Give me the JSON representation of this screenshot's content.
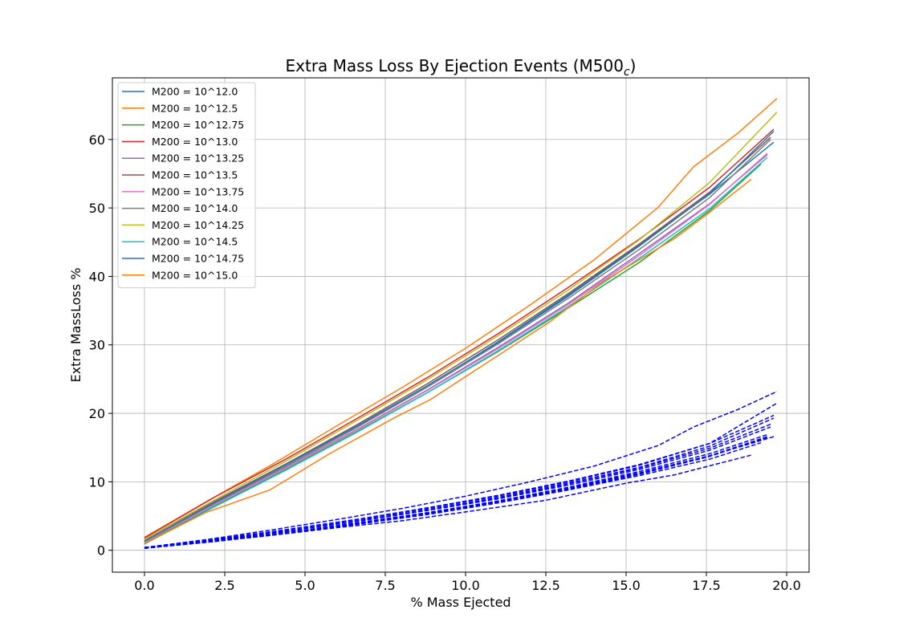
{
  "chart_data": {
    "type": "line",
    "title": "Extra Mass Loss By Ejection Events (M500",
    "title_subscript": "c",
    "title_suffix": ")",
    "xlabel": "% Mass Ejected",
    "ylabel": "Extra MassLoss %",
    "xlim": [
      -1.0,
      20.7
    ],
    "ylim": [
      -3.2,
      69.0
    ],
    "xticks": [
      0.0,
      2.5,
      5.0,
      7.5,
      10.0,
      12.5,
      15.0,
      17.5,
      20.0
    ],
    "xtick_labels": [
      "0.0",
      "2.5",
      "5.0",
      "7.5",
      "10.0",
      "12.5",
      "15.0",
      "17.5",
      "20.0"
    ],
    "yticks": [
      0,
      10,
      20,
      30,
      40,
      50,
      60
    ],
    "ytick_labels": [
      "0",
      "10",
      "20",
      "30",
      "40",
      "50",
      "60"
    ],
    "grid": true,
    "legend_position": "top-left",
    "series": [
      {
        "name": "M200 = 10^12.0",
        "color": "#1f77b4",
        "style": "solid",
        "x": [
          0,
          2.2,
          4.4,
          6.6,
          8.8,
          11.0,
          13.2,
          15.4,
          17.6,
          19.6
        ],
        "y": [
          1.2,
          6.9,
          12.3,
          17.9,
          23.9,
          30.4,
          37.3,
          44.6,
          52.0,
          59.6
        ]
      },
      {
        "name": "M200 = 10^12.5",
        "color": "#ff7f0e",
        "style": "solid",
        "x": [
          0,
          2.0,
          4.0,
          6.0,
          8.0,
          10.0,
          12.0,
          14.0,
          16.0,
          17.1,
          18.5,
          19.7
        ],
        "y": [
          1.9,
          7.3,
          12.6,
          18.2,
          23.7,
          29.5,
          35.8,
          42.4,
          50.1,
          56.0,
          61.0,
          66.0
        ]
      },
      {
        "name": "M200 = 10^12.75",
        "color": "#2ca02c",
        "style": "solid",
        "x": [
          0,
          2.2,
          4.4,
          6.6,
          8.8,
          11.0,
          13.2,
          15.4,
          17.6,
          19.2
        ],
        "y": [
          1.0,
          6.5,
          11.8,
          17.3,
          23.0,
          29.0,
          35.4,
          42.0,
          49.6,
          56.4
        ]
      },
      {
        "name": "M200 = 10^13.0",
        "color": "#d62728",
        "style": "solid",
        "x": [
          0,
          2.2,
          4.4,
          6.6,
          8.8,
          11.0,
          13.2,
          15.4,
          17.6,
          19.6
        ],
        "y": [
          1.8,
          7.8,
          13.3,
          19.2,
          25.2,
          31.6,
          38.4,
          45.4,
          53.0,
          61.5
        ]
      },
      {
        "name": "M200 = 10^13.25",
        "color": "#9467bd",
        "style": "solid",
        "x": [
          0,
          2.2,
          4.4,
          6.6,
          8.8,
          11.0,
          13.2,
          15.4,
          17.6,
          19.4
        ],
        "y": [
          1.3,
          6.8,
          12.1,
          17.6,
          23.4,
          29.6,
          36.1,
          43.3,
          50.6,
          57.8
        ]
      },
      {
        "name": "M200 = 10^13.5",
        "color": "#8c564b",
        "style": "solid",
        "x": [
          0,
          2.2,
          4.4,
          6.6,
          8.8,
          11.0,
          13.2,
          15.4,
          17.6,
          19.5
        ],
        "y": [
          1.6,
          7.2,
          12.6,
          18.3,
          24.3,
          30.7,
          37.5,
          44.7,
          52.3,
          60.3
        ]
      },
      {
        "name": "M200 = 10^13.75",
        "color": "#e377c2",
        "style": "solid",
        "x": [
          0,
          2.2,
          4.4,
          6.6,
          8.8,
          11.0,
          13.2,
          15.4,
          17.6,
          19.4
        ],
        "y": [
          1.2,
          6.7,
          12.0,
          17.5,
          23.3,
          29.4,
          35.9,
          43.0,
          50.5,
          58.0
        ]
      },
      {
        "name": "M200 = 10^14.0",
        "color": "#7f7f7f",
        "style": "solid",
        "x": [
          0,
          2.2,
          4.4,
          6.6,
          8.8,
          11.0,
          13.2,
          15.4,
          17.6,
          19.5
        ],
        "y": [
          1.4,
          7.0,
          12.3,
          17.9,
          23.8,
          30.1,
          36.8,
          43.9,
          51.5,
          60.0
        ]
      },
      {
        "name": "M200 = 10^14.25",
        "color": "#bcbd22",
        "style": "solid",
        "x": [
          0,
          2.2,
          4.4,
          6.6,
          8.8,
          11.0,
          13.2,
          15.4,
          17.6,
          19.7
        ],
        "y": [
          1.6,
          7.4,
          13.0,
          18.9,
          24.9,
          31.3,
          38.0,
          45.3,
          53.7,
          64.0
        ]
      },
      {
        "name": "M200 = 10^14.5",
        "color": "#17becf",
        "style": "solid",
        "x": [
          0,
          2.2,
          4.4,
          6.6,
          8.8,
          11.0,
          13.2,
          15.4,
          17.6,
          19.4
        ],
        "y": [
          0.9,
          6.4,
          11.7,
          17.2,
          23.0,
          29.1,
          35.6,
          42.6,
          49.9,
          57.4
        ]
      },
      {
        "name": "M200 = 10^14.75",
        "color": "#1f77b4",
        "style": "solid",
        "x": [
          0,
          2.2,
          4.4,
          6.6,
          8.8,
          11.0,
          13.2,
          15.4,
          17.6,
          19.6
        ],
        "y": [
          1.3,
          7.0,
          12.5,
          18.1,
          24.0,
          30.3,
          37.1,
          44.4,
          52.1,
          61.2
        ]
      },
      {
        "name": "M200 = 10^15.0",
        "color": "#ff7f0e",
        "style": "solid",
        "x": [
          0,
          1.9,
          3.9,
          5.8,
          7.8,
          8.9,
          10.8,
          12.6,
          14.3,
          16.5,
          17.5,
          18.9
        ],
        "y": [
          1.0,
          5.5,
          8.8,
          14.2,
          19.4,
          22.0,
          27.8,
          33.3,
          39.3,
          45.5,
          49.0,
          54.2
        ]
      },
      {
        "color": "#0000ff",
        "style": "dashed",
        "x": [
          0,
          2.2,
          4.4,
          6.6,
          8.8,
          11.0,
          13.2,
          15.4,
          17.6,
          19.6
        ],
        "y": [
          0.3,
          1.4,
          2.6,
          3.9,
          5.4,
          7.1,
          9.1,
          11.3,
          13.8,
          16.6
        ]
      },
      {
        "color": "#0000ff",
        "style": "dashed",
        "x": [
          0,
          2.0,
          4.0,
          6.0,
          8.0,
          10.0,
          12.0,
          14.0,
          16.0,
          17.1,
          18.5,
          19.7
        ],
        "y": [
          0.4,
          1.6,
          3.0,
          4.5,
          6.1,
          7.9,
          10.0,
          12.3,
          15.3,
          18.0,
          20.6,
          23.2
        ]
      },
      {
        "color": "#0000ff",
        "style": "dashed",
        "x": [
          0,
          2.2,
          4.4,
          6.6,
          8.8,
          11.0,
          13.2,
          15.4,
          17.6,
          19.2
        ],
        "y": [
          0.3,
          1.3,
          2.5,
          3.8,
          5.2,
          6.9,
          8.8,
          10.9,
          13.3,
          15.7
        ]
      },
      {
        "color": "#0000ff",
        "style": "dashed",
        "x": [
          0,
          2.2,
          4.4,
          6.6,
          8.8,
          11.0,
          13.2,
          15.4,
          17.6,
          19.6
        ],
        "y": [
          0.4,
          1.6,
          3.0,
          4.5,
          6.2,
          8.0,
          10.1,
          12.5,
          15.6,
          19.7
        ]
      },
      {
        "color": "#0000ff",
        "style": "dashed",
        "x": [
          0,
          2.2,
          4.4,
          6.6,
          8.8,
          11.0,
          13.2,
          15.4,
          17.6,
          19.4
        ],
        "y": [
          0.3,
          1.4,
          2.6,
          4.0,
          5.5,
          7.2,
          9.2,
          11.5,
          14.1,
          16.9
        ]
      },
      {
        "color": "#0000ff",
        "style": "dashed",
        "x": [
          0,
          2.2,
          4.4,
          6.6,
          8.8,
          11.0,
          13.2,
          15.4,
          17.6,
          19.5
        ],
        "y": [
          0.4,
          1.5,
          2.8,
          4.3,
          5.9,
          7.6,
          9.7,
          12.0,
          14.9,
          18.4
        ]
      },
      {
        "color": "#0000ff",
        "style": "dashed",
        "x": [
          0,
          2.2,
          4.4,
          6.6,
          8.8,
          11.0,
          13.2,
          15.4,
          17.6,
          19.4
        ],
        "y": [
          0.3,
          1.3,
          2.6,
          3.9,
          5.4,
          7.1,
          9.0,
          11.2,
          13.8,
          16.6
        ]
      },
      {
        "color": "#0000ff",
        "style": "dashed",
        "x": [
          0,
          2.2,
          4.4,
          6.6,
          8.8,
          11.0,
          13.2,
          15.4,
          17.6,
          19.5
        ],
        "y": [
          0.3,
          1.5,
          2.8,
          4.2,
          5.8,
          7.5,
          9.5,
          11.8,
          14.6,
          18.0
        ]
      },
      {
        "color": "#0000ff",
        "style": "dashed",
        "x": [
          0,
          2.2,
          4.4,
          6.6,
          8.8,
          11.0,
          13.2,
          15.4,
          17.6,
          19.7
        ],
        "y": [
          0.4,
          1.6,
          3.0,
          4.5,
          6.1,
          7.9,
          10.0,
          12.4,
          15.6,
          21.5
        ]
      },
      {
        "color": "#0000ff",
        "style": "dashed",
        "x": [
          0,
          2.2,
          4.4,
          6.6,
          8.8,
          11.0,
          13.2,
          15.4,
          17.6,
          19.4
        ],
        "y": [
          0.3,
          1.3,
          2.5,
          3.8,
          5.3,
          7.0,
          8.9,
          11.1,
          13.7,
          16.5
        ]
      },
      {
        "color": "#0000ff",
        "style": "dashed",
        "x": [
          0,
          2.2,
          4.4,
          6.6,
          8.8,
          11.0,
          13.2,
          15.4,
          17.6,
          19.6
        ],
        "y": [
          0.3,
          1.5,
          2.8,
          4.3,
          5.9,
          7.7,
          9.8,
          12.1,
          15.2,
          19.3
        ]
      },
      {
        "color": "#0000ff",
        "style": "dashed",
        "x": [
          0,
          2.0,
          4.0,
          6.0,
          8.0,
          10.0,
          12.5,
          15.0,
          16.5,
          18.9
        ],
        "y": [
          0.3,
          1.2,
          2.2,
          3.3,
          4.3,
          5.6,
          7.3,
          9.8,
          11.0,
          13.9
        ]
      }
    ]
  }
}
